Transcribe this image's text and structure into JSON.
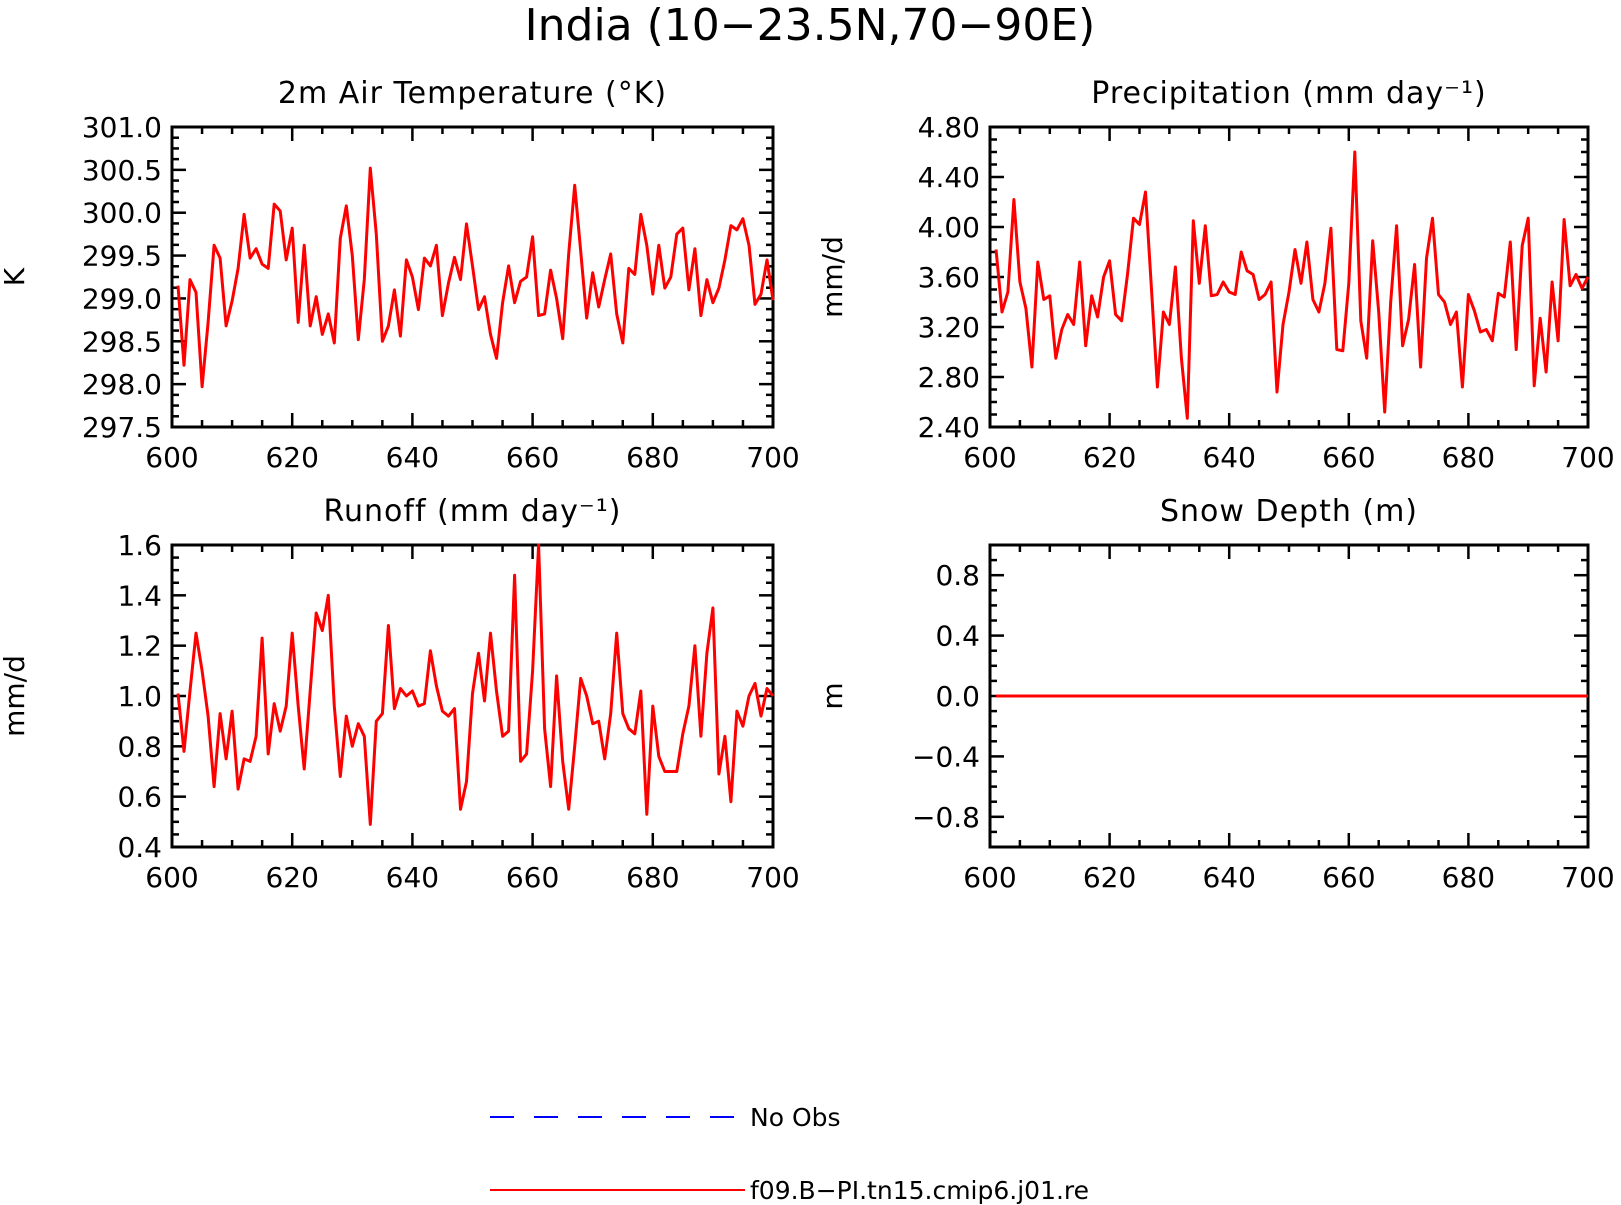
{
  "figure": {
    "title": "India (10−23.5N,70−90E)"
  },
  "legend": {
    "entries": [
      {
        "label": "No Obs",
        "color": "#0000ff",
        "style": "dashed"
      },
      {
        "label": "f09.B−PI.tn15.cmip6.j01.re",
        "color": "#ff0000",
        "style": "solid"
      }
    ]
  },
  "chart_data": [
    {
      "type": "line",
      "title": "2m Air Temperature (°K)",
      "ylabel": "K",
      "xlim": [
        600,
        700
      ],
      "ylim": [
        297.5,
        301.0
      ],
      "xticks": [
        600,
        620,
        640,
        660,
        680,
        700
      ],
      "yticks": [
        297.5,
        298.0,
        298.5,
        299.0,
        299.5,
        300.0,
        300.5,
        301.0
      ],
      "ytick_labels": [
        "297.5",
        "298.0",
        "298.5",
        "299.0",
        "299.5",
        "300.0",
        "300.5",
        "301.0"
      ],
      "series": [
        {
          "color": "#ff0000",
          "x_start": 601,
          "values": [
            299.15,
            298.22,
            299.22,
            299.07,
            297.97,
            298.72,
            299.62,
            299.47,
            298.68,
            298.97,
            299.35,
            299.98,
            299.47,
            299.58,
            299.4,
            299.35,
            300.1,
            300.02,
            299.45,
            299.82,
            298.72,
            299.62,
            298.68,
            299.02,
            298.58,
            298.82,
            298.48,
            299.7,
            300.08,
            299.5,
            298.52,
            299.22,
            300.52,
            299.75,
            298.5,
            298.68,
            299.1,
            298.56,
            299.45,
            299.25,
            298.87,
            299.47,
            299.38,
            299.62,
            298.8,
            299.18,
            299.48,
            299.22,
            299.87,
            299.38,
            298.87,
            299.02,
            298.58,
            298.3,
            298.95,
            299.38,
            298.95,
            299.2,
            299.25,
            299.72,
            298.8,
            298.82,
            299.33,
            299.0,
            298.53,
            299.52,
            300.32,
            299.55,
            298.77,
            299.3,
            298.9,
            299.22,
            299.52,
            298.82,
            298.48,
            299.35,
            299.28,
            299.98,
            299.62,
            299.05,
            299.62,
            299.12,
            299.25,
            299.75,
            299.82,
            299.1,
            299.58,
            298.8,
            299.22,
            298.95,
            299.12,
            299.45,
            299.85,
            299.8,
            299.93,
            299.62,
            298.93,
            299.05,
            299.45,
            298.98
          ]
        }
      ]
    },
    {
      "type": "line",
      "title": "Precipitation (mm day⁻¹)",
      "ylabel": "mm/d",
      "xlim": [
        600,
        700
      ],
      "ylim": [
        2.4,
        4.8
      ],
      "xticks": [
        600,
        620,
        640,
        660,
        680,
        700
      ],
      "yticks": [
        2.4,
        2.8,
        3.2,
        3.6,
        4.0,
        4.4,
        4.8
      ],
      "ytick_labels": [
        "2.40",
        "2.80",
        "3.20",
        "3.60",
        "4.00",
        "4.40",
        "4.80"
      ],
      "series": [
        {
          "color": "#ff0000",
          "x_start": 601,
          "values": [
            3.82,
            3.32,
            3.48,
            4.22,
            3.56,
            3.35,
            2.88,
            3.72,
            3.42,
            3.45,
            2.95,
            3.18,
            3.3,
            3.22,
            3.72,
            3.05,
            3.45,
            3.28,
            3.6,
            3.73,
            3.3,
            3.25,
            3.62,
            4.07,
            4.02,
            4.28,
            3.5,
            2.72,
            3.32,
            3.22,
            3.68,
            2.95,
            2.47,
            4.05,
            3.55,
            4.01,
            3.45,
            3.46,
            3.56,
            3.48,
            3.46,
            3.8,
            3.65,
            3.62,
            3.42,
            3.46,
            3.56,
            2.68,
            3.22,
            3.48,
            3.82,
            3.55,
            3.88,
            3.42,
            3.32,
            3.55,
            3.99,
            3.02,
            3.01,
            3.55,
            4.6,
            3.25,
            2.95,
            3.89,
            3.32,
            2.52,
            3.4,
            4.01,
            3.05,
            3.26,
            3.7,
            2.88,
            3.75,
            4.07,
            3.46,
            3.4,
            3.22,
            3.32,
            2.72,
            3.46,
            3.33,
            3.16,
            3.18,
            3.09,
            3.47,
            3.44,
            3.88,
            3.02,
            3.85,
            4.07,
            2.73,
            3.27,
            2.84,
            3.56,
            3.09,
            4.06,
            3.53,
            3.62,
            3.51,
            3.6
          ]
        }
      ]
    },
    {
      "type": "line",
      "title": "Runoff (mm day⁻¹)",
      "ylabel": "mm/d",
      "xlim": [
        600,
        700
      ],
      "ylim": [
        0.4,
        1.6
      ],
      "xticks": [
        600,
        620,
        640,
        660,
        680,
        700
      ],
      "yticks": [
        0.4,
        0.6,
        0.8,
        1.0,
        1.2,
        1.4,
        1.6
      ],
      "ytick_labels": [
        "0.4",
        "0.6",
        "0.8",
        "1.0",
        "1.2",
        "1.4",
        "1.6"
      ],
      "series": [
        {
          "color": "#ff0000",
          "x_start": 601,
          "values": [
            1.01,
            0.78,
            1.02,
            1.25,
            1.1,
            0.92,
            0.64,
            0.93,
            0.75,
            0.94,
            0.63,
            0.75,
            0.74,
            0.84,
            1.23,
            0.77,
            0.97,
            0.86,
            0.96,
            1.25,
            0.96,
            0.71,
            1.02,
            1.33,
            1.26,
            1.4,
            0.96,
            0.68,
            0.92,
            0.8,
            0.89,
            0.84,
            0.49,
            0.9,
            0.93,
            1.28,
            0.95,
            1.03,
            1.0,
            1.02,
            0.96,
            0.97,
            1.18,
            1.04,
            0.94,
            0.92,
            0.95,
            0.55,
            0.66,
            1.01,
            1.17,
            0.98,
            1.25,
            1.02,
            0.84,
            0.86,
            1.48,
            0.74,
            0.77,
            1.1,
            1.6,
            0.87,
            0.64,
            1.08,
            0.74,
            0.55,
            0.8,
            1.07,
            1.0,
            0.89,
            0.9,
            0.75,
            0.93,
            1.25,
            0.93,
            0.87,
            0.85,
            1.02,
            0.53,
            0.96,
            0.76,
            0.7,
            0.7,
            0.7,
            0.85,
            0.96,
            1.2,
            0.84,
            1.17,
            1.35,
            0.69,
            0.84,
            0.58,
            0.94,
            0.88,
            1.0,
            1.05,
            0.92,
            1.03,
            1.0
          ]
        }
      ]
    },
    {
      "type": "line",
      "title": "Snow Depth (m)",
      "ylabel": "m",
      "xlim": [
        600,
        700
      ],
      "ylim": [
        -1.0,
        1.0
      ],
      "xticks": [
        600,
        620,
        640,
        660,
        680,
        700
      ],
      "yticks": [
        -0.8,
        -0.4,
        0.0,
        0.4,
        0.8
      ],
      "ytick_labels": [
        "−0.8",
        "−0.4",
        "0.0",
        "0.4",
        "0.8"
      ],
      "series": [
        {
          "color": "#ff0000",
          "x": [
            601,
            700
          ],
          "values": [
            0.0,
            0.0
          ]
        }
      ]
    }
  ]
}
